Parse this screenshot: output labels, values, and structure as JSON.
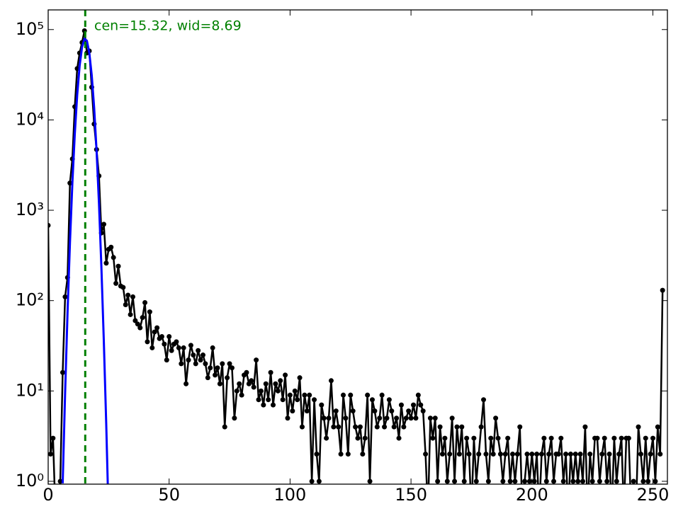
{
  "chart_data": {
    "type": "step-errorbar",
    "annotation": "cen=15.32, wid=8.69",
    "vline": 15.32,
    "vline_color": "#008000",
    "log_y": true,
    "xlim": [
      0,
      256
    ],
    "ylim": [
      0.93,
      165000
    ],
    "xticks": [
      0,
      50,
      100,
      150,
      200,
      250
    ],
    "yticks": [
      {
        "value": 1,
        "label": "10⁰"
      },
      {
        "value": 10,
        "label": "10¹"
      },
      {
        "value": 100,
        "label": "10²"
      },
      {
        "value": 1000,
        "label": "10³"
      },
      {
        "value": 10000,
        "label": "10⁴"
      },
      {
        "value": 100000,
        "label": "10⁵"
      }
    ],
    "series": [
      {
        "color": "#000000",
        "x": [
          0,
          1,
          2,
          3,
          4,
          5,
          6,
          7,
          8,
          9,
          10,
          11,
          12,
          13,
          14,
          15,
          16,
          17,
          18,
          19,
          20,
          21,
          22,
          23,
          24,
          25,
          26,
          27,
          28,
          29,
          30,
          31,
          32,
          33,
          34,
          35,
          36,
          37,
          38,
          39,
          40,
          41,
          42,
          43,
          44,
          45,
          46,
          47,
          48,
          49,
          50,
          51,
          52,
          53,
          54,
          55,
          56,
          57,
          58,
          59,
          60,
          61,
          62,
          63,
          64,
          65,
          66,
          67,
          68,
          69,
          70,
          71,
          72,
          73,
          74,
          75,
          76,
          77,
          78,
          79,
          80,
          81,
          82,
          83,
          84,
          85,
          86,
          87,
          88,
          89,
          90,
          91,
          92,
          93,
          94,
          95,
          96,
          97,
          98,
          99,
          100,
          101,
          102,
          103,
          104,
          105,
          106,
          107,
          108,
          109,
          110,
          111,
          112,
          113,
          114,
          115,
          116,
          117,
          118,
          119,
          120,
          121,
          122,
          123,
          124,
          125,
          126,
          127,
          128,
          129,
          130,
          131,
          132,
          133,
          134,
          135,
          136,
          137,
          138,
          139,
          140,
          141,
          142,
          143,
          144,
          145,
          146,
          147,
          148,
          149,
          150,
          151,
          152,
          153,
          154,
          155,
          156,
          157,
          158,
          159,
          160,
          161,
          162,
          163,
          164,
          165,
          166,
          167,
          168,
          169,
          170,
          171,
          172,
          173,
          174,
          175,
          176,
          177,
          178,
          179,
          180,
          181,
          182,
          183,
          184,
          185,
          186,
          187,
          188,
          189,
          190,
          191,
          192,
          193,
          194,
          195,
          196,
          197,
          198,
          199,
          200,
          201,
          202,
          203,
          204,
          205,
          206,
          207,
          208,
          209,
          210,
          211,
          212,
          213,
          214,
          215,
          216,
          217,
          218,
          219,
          220,
          221,
          222,
          223,
          224,
          225,
          226,
          227,
          228,
          229,
          230,
          231,
          232,
          233,
          234,
          235,
          236,
          237,
          238,
          239,
          240,
          241,
          242,
          243,
          244,
          245,
          246,
          247,
          248,
          249,
          250,
          251,
          252,
          253,
          254
        ],
        "values": [
          680,
          2,
          3,
          0,
          0,
          1,
          16,
          110,
          180,
          2000,
          3700,
          14000,
          37000,
          55000,
          72000,
          97000,
          55000,
          58000,
          23000,
          9000,
          4700,
          2400,
          560,
          700,
          260,
          370,
          390,
          300,
          155,
          240,
          145,
          140,
          90,
          115,
          70,
          110,
          60,
          55,
          50,
          65,
          95,
          35,
          75,
          30,
          45,
          50,
          38,
          40,
          33,
          22,
          40,
          28,
          33,
          35,
          30,
          20,
          30,
          12,
          22,
          32,
          25,
          20,
          28,
          22,
          25,
          20,
          14,
          18,
          30,
          15,
          18,
          12,
          20,
          4,
          14,
          20,
          18,
          5,
          10,
          12,
          9,
          15,
          16,
          12,
          13,
          11,
          22,
          8,
          10,
          7,
          12,
          8,
          16,
          7,
          12,
          10,
          13,
          8,
          15,
          5,
          9,
          6,
          10,
          8,
          14,
          4,
          9,
          6,
          9,
          1,
          8,
          2,
          1,
          7,
          5,
          3,
          5,
          13,
          4,
          6,
          4,
          2,
          9,
          5,
          2,
          9,
          6,
          4,
          3,
          4,
          2,
          3,
          9,
          1,
          8,
          6,
          4,
          5,
          9,
          4,
          5,
          8,
          6,
          4,
          5,
          3,
          7,
          4,
          5,
          6,
          5,
          7,
          5,
          9,
          7,
          6,
          2,
          0,
          5,
          3,
          5,
          1,
          4,
          2,
          3,
          1,
          2,
          5,
          1,
          4,
          2,
          4,
          1,
          3,
          2,
          0,
          3,
          1,
          2,
          4,
          8,
          2,
          1,
          3,
          2,
          5,
          3,
          2,
          1,
          2,
          3,
          1,
          2,
          1,
          2,
          4,
          0,
          1,
          2,
          1,
          2,
          1,
          2,
          0,
          2,
          3,
          1,
          2,
          3,
          1,
          2,
          2,
          3,
          1,
          2,
          0,
          2,
          1,
          2,
          1,
          2,
          1,
          4,
          0,
          2,
          1,
          3,
          3,
          1,
          2,
          3,
          1,
          2,
          0,
          3,
          1,
          2,
          3,
          0,
          3,
          3,
          0,
          1,
          0,
          4,
          2,
          1,
          3,
          1,
          2,
          3,
          1,
          4,
          2,
          130
        ]
      },
      {
        "color": "#0000ff",
        "x": [
          6,
          7,
          8,
          9,
          10,
          11,
          12,
          13,
          14,
          15,
          16,
          17,
          18,
          19,
          20,
          21,
          22,
          23,
          24,
          25
        ],
        "values": [
          0.95,
          9.5,
          73,
          437,
          2000,
          6970,
          18970,
          39600,
          63800,
          79000,
          75200,
          55300,
          31300,
          13700,
          4590,
          1190,
          235,
          36,
          4.3,
          0.39
        ]
      }
    ]
  }
}
